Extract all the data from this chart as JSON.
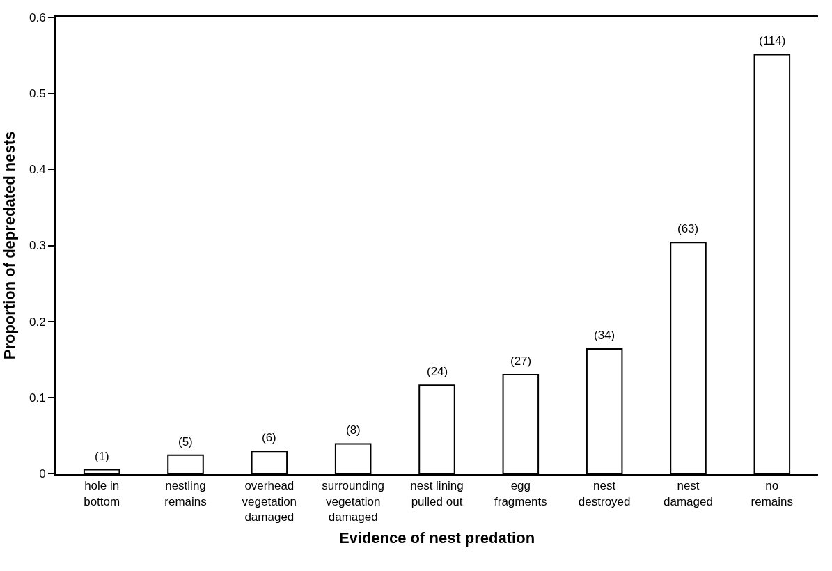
{
  "chart_data": {
    "type": "bar",
    "xlabel": "Evidence of nest predation",
    "ylabel": "Proportion of depredated nests",
    "categories": [
      "hole in\nbottom",
      "nestling\nremains",
      "overhead\nvegetation\ndamaged",
      "surrounding\nvegetation\ndamaged",
      "nest lining\npulled out",
      "egg\nfragments",
      "nest\ndestroyed",
      "nest\ndamaged",
      "no\nremains"
    ],
    "values": [
      0.005,
      0.024,
      0.029,
      0.039,
      0.116,
      0.13,
      0.164,
      0.304,
      0.551
    ],
    "annotations": [
      "(1)",
      "(5)",
      "(6)",
      "(8)",
      "(24)",
      "(27)",
      "(34)",
      "(63)",
      "(114)"
    ],
    "color": "#ffffff",
    "ylim": [
      0,
      0.6
    ],
    "yticks": [
      0,
      0.1,
      0.2,
      0.3,
      0.4,
      0.5,
      0.6
    ],
    "legend": false
  }
}
